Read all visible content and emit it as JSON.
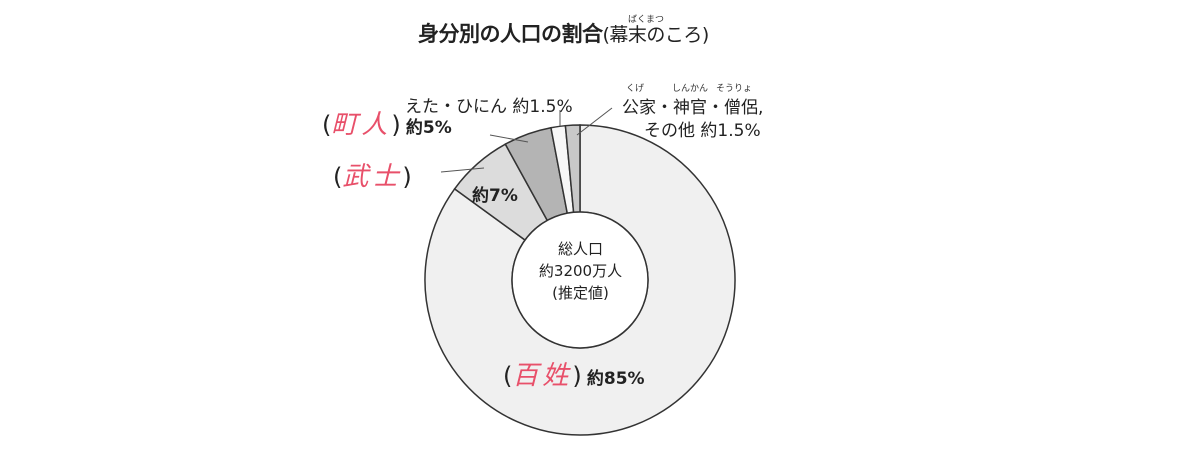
{
  "chart_data": {
    "type": "pie",
    "donut": true,
    "title": "身分別の人口の割合",
    "subtitle": "(幕末のころ)",
    "subtitle_ruby": "ばくまつ",
    "center_text": [
      "総人口",
      "約3200万人",
      "(推定値)"
    ],
    "slices": [
      {
        "label": "百姓",
        "value": 85,
        "value_label": "約85%",
        "color": "#f0f0f0",
        "handwritten": true
      },
      {
        "label": "武士",
        "value": 7,
        "value_label": "約7%",
        "color": "#dcdcdc",
        "handwritten": true
      },
      {
        "label": "町人",
        "value": 5,
        "value_label": "約5%",
        "color": "#b4b4b4",
        "handwritten": true
      },
      {
        "label": "えた・ひにん",
        "value": 1.5,
        "value_label": "約1.5%",
        "color": "#f7f7f7"
      },
      {
        "label": "公家・神官・僧侶,",
        "label2": "その他",
        "value": 1.5,
        "value_label": "約1.5%",
        "color": "#c8c8c8",
        "ruby": [
          "くげ",
          "しんかん",
          "そうりょ"
        ]
      }
    ],
    "start_angle": "top",
    "direction": "clockwise",
    "handwriting_color": "#e8506a"
  }
}
